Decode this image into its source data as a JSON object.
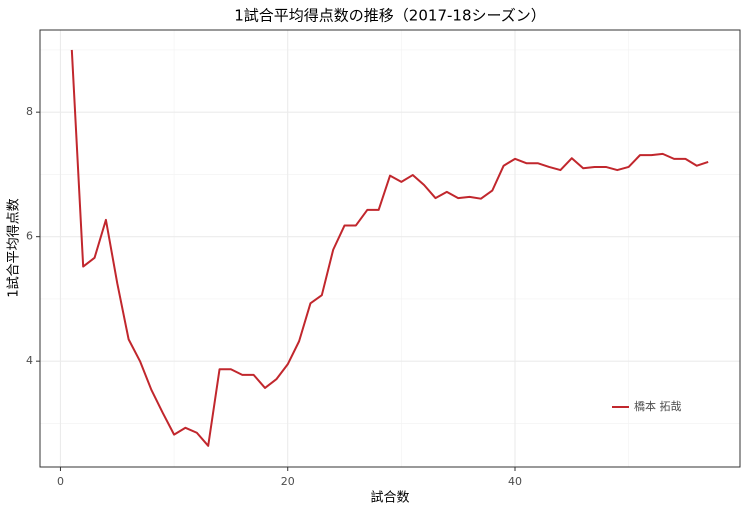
{
  "chart_data": {
    "type": "line",
    "title": "1試合平均得点数の推移（2017-18シーズン）",
    "x_label": "試合数",
    "y_label": "1試合平均得点数",
    "x": [
      1,
      2,
      3,
      4,
      5,
      6,
      7,
      8,
      9,
      10,
      11,
      12,
      13,
      14,
      15,
      16,
      17,
      18,
      19,
      20,
      21,
      22,
      23,
      24,
      25,
      26,
      27,
      28,
      29,
      30,
      31,
      32,
      33,
      34,
      35,
      36,
      37,
      38,
      39,
      40,
      41,
      42,
      43,
      44,
      45,
      46,
      47,
      48,
      49,
      50,
      51,
      52,
      53,
      54,
      55,
      56,
      57
    ],
    "series": [
      {
        "name": "橋本 拓哉",
        "color": "#c1272d",
        "values": [
          9.0,
          5.52,
          5.66,
          6.27,
          5.25,
          4.35,
          4.0,
          3.54,
          3.17,
          2.82,
          2.93,
          2.85,
          2.64,
          3.87,
          3.87,
          3.78,
          3.78,
          3.57,
          3.71,
          3.95,
          4.32,
          4.93,
          5.06,
          5.79,
          6.18,
          6.18,
          6.43,
          6.43,
          6.98,
          6.88,
          6.99,
          6.83,
          6.62,
          6.72,
          6.62,
          6.64,
          6.61,
          6.74,
          7.14,
          7.25,
          7.18,
          7.18,
          7.12,
          7.07,
          7.26,
          7.1,
          7.12,
          7.12,
          7.07,
          7.12,
          7.31,
          7.31,
          7.33,
          7.25,
          7.25,
          7.14,
          7.2
        ]
      }
    ],
    "xlim": [
      -1.8,
      59.8
    ],
    "xticks": [
      0,
      20,
      40
    ],
    "minor_xticks": [
      10,
      30,
      50
    ],
    "ylim": [
      2.3,
      9.32
    ],
    "yticks": [
      4,
      6,
      8
    ],
    "minor_yticks": [
      3,
      5,
      7,
      9
    ],
    "grid": true,
    "legend": "bottom-right"
  }
}
